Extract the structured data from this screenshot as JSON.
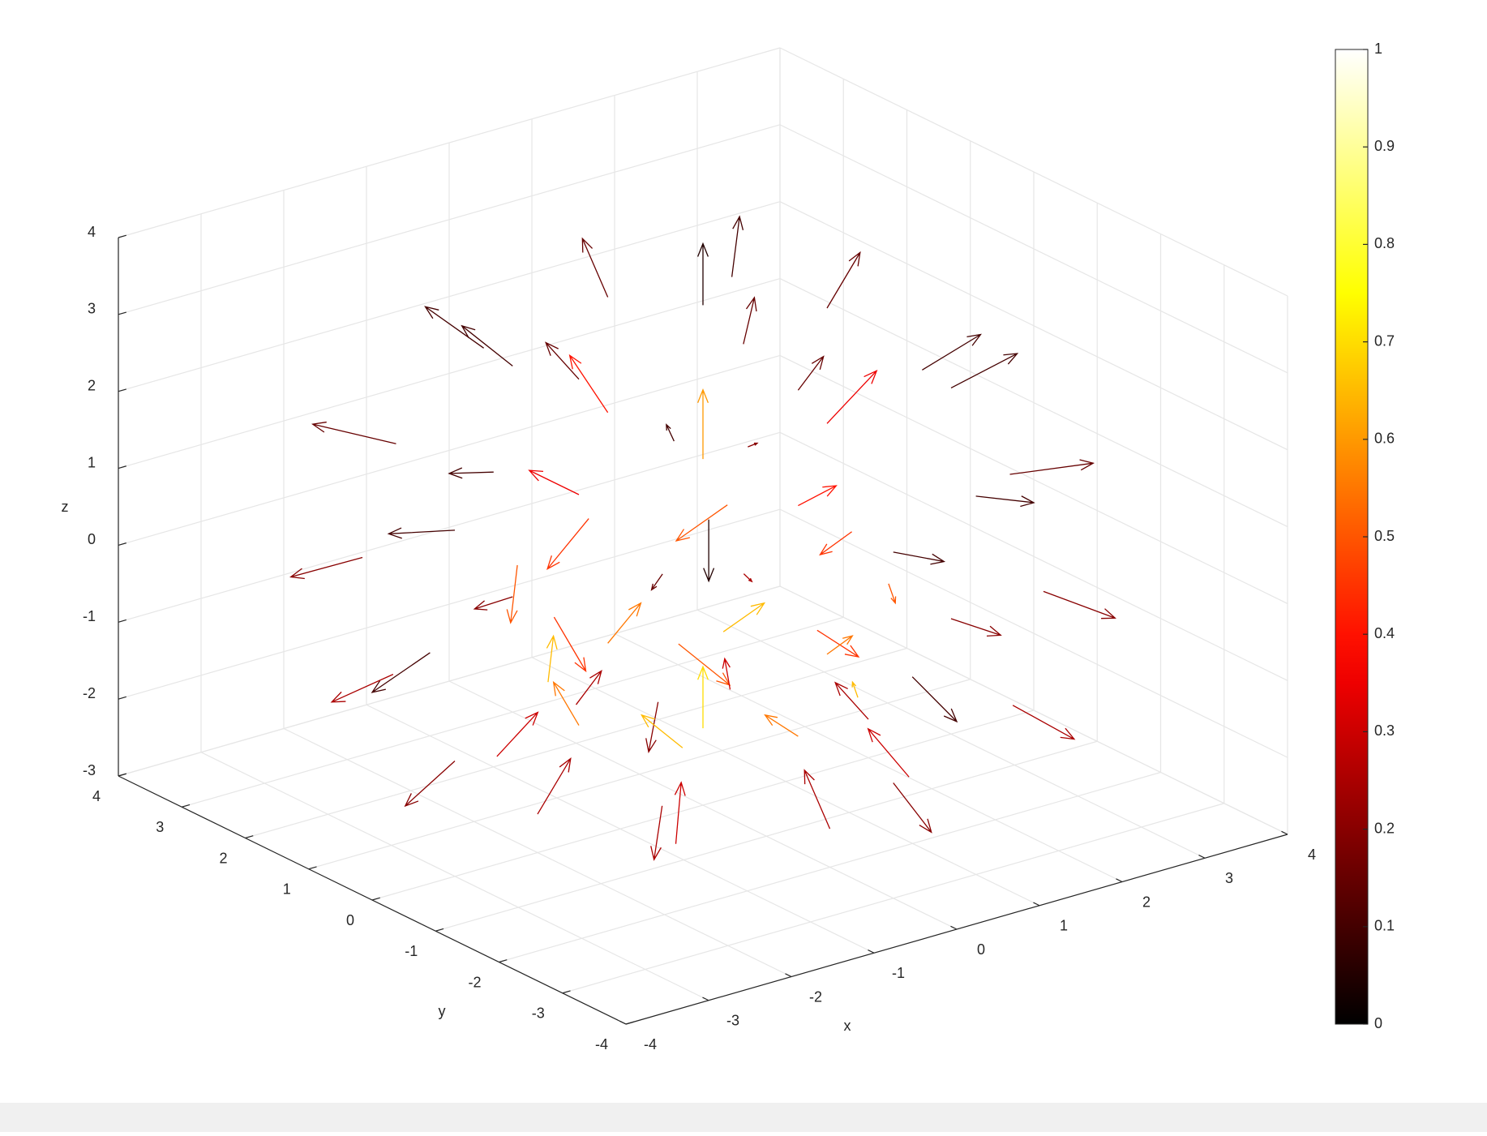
{
  "chart_data": {
    "type": "quiver3",
    "xlabel": "x",
    "ylabel": "y",
    "zlabel": "z",
    "xlim": [
      -4,
      4
    ],
    "ylim": [
      -4,
      4
    ],
    "zlim": [
      -3,
      4
    ],
    "xticks": [
      -4,
      -3,
      -2,
      -1,
      0,
      1,
      2,
      3,
      4
    ],
    "yticks": [
      -4,
      -3,
      -2,
      -1,
      0,
      1,
      2,
      3,
      4
    ],
    "zticks": [
      -3,
      -2,
      -1,
      0,
      1,
      2,
      3,
      4
    ],
    "grid": true,
    "colormap": "hot",
    "clim": [
      0,
      1
    ],
    "cticks": [
      0,
      0.1,
      0.2,
      0.3,
      0.4,
      0.5,
      0.6,
      0.7,
      0.8,
      0.9,
      1
    ],
    "x": [
      0,
      1.5,
      -1.5,
      0,
      0,
      1.5,
      -1.5,
      1.5,
      -1.5,
      3,
      2.1,
      0,
      -2.1,
      -3,
      -2.1,
      0,
      2.1,
      1.5,
      0,
      -1.5,
      0,
      0,
      0.3,
      3.3,
      2.33,
      0,
      -2.33,
      -3.3,
      -2.33,
      0,
      2.33,
      1.8,
      1.27,
      0,
      -1.27,
      -1.8,
      -1.27,
      0,
      1.27,
      3,
      2.12,
      0,
      -2.12,
      -3,
      -2.12,
      0,
      2.12,
      1.5,
      1.06,
      0,
      -1.06,
      -1.5,
      -1.06,
      0,
      1.06,
      2,
      1.41,
      0,
      -1.41,
      -2,
      -1.41,
      0,
      1.41,
      0
    ],
    "y": [
      0,
      0,
      0,
      1.5,
      -1.5,
      1.5,
      -1.5,
      -1.5,
      1.5,
      0,
      2.1,
      3,
      2.1,
      0,
      -2.1,
      -3,
      -2.1,
      0,
      1.5,
      0,
      -1.5,
      0,
      0.3,
      0,
      2.33,
      3.3,
      2.33,
      0,
      -2.33,
      -3.3,
      -2.33,
      0,
      1.27,
      1.8,
      1.27,
      0,
      -1.27,
      -1.8,
      -1.27,
      0,
      2.12,
      3,
      2.12,
      0,
      -2.12,
      -3,
      -2.12,
      0,
      1.06,
      1.5,
      1.06,
      0,
      -1.06,
      -1.5,
      -1.06,
      0,
      1.41,
      2,
      1.41,
      0,
      -1.41,
      -2,
      -1.41,
      0
    ],
    "z": [
      3.5,
      3,
      3,
      3,
      3,
      2.8,
      2.8,
      2.8,
      2.8,
      1.5,
      1.5,
      1.5,
      1.5,
      1.5,
      1.5,
      1.5,
      1.5,
      1.5,
      1.5,
      1.5,
      1.5,
      1.5,
      0.5,
      0,
      0,
      0,
      0,
      0,
      0,
      0,
      0,
      0,
      0,
      0,
      0,
      0,
      0,
      0,
      0,
      -1.5,
      -1.5,
      -1.5,
      -1.5,
      -1.5,
      -1.5,
      -1.5,
      -1.5,
      -1.5,
      -1.5,
      -1.5,
      -1.5,
      -1.5,
      -1.5,
      -1.5,
      -1.5,
      -2.5,
      -2.5,
      -2.5,
      -2.5,
      -2.5,
      -2.5,
      -2.5,
      -2.5,
      -2
    ],
    "u": [
      0,
      0.4,
      -0.4,
      0,
      0,
      0.4,
      -0.4,
      0.4,
      -0.4,
      0.8,
      0.57,
      0,
      -0.57,
      -0.8,
      -0.57,
      0,
      0.57,
      0.6,
      0,
      -0.6,
      0,
      0,
      0,
      0.7,
      0.49,
      0,
      -0.49,
      -0.7,
      -0.49,
      0,
      0.49,
      0,
      -0.35,
      -0.5,
      -0.35,
      0,
      0.35,
      0.5,
      0.35,
      0.6,
      0.42,
      0,
      -0.42,
      -0.6,
      -0.42,
      0,
      0.42,
      0,
      0.28,
      0.4,
      0.28,
      0,
      -0.28,
      -0.4,
      -0.28,
      -0.4,
      -0.28,
      0,
      0.28,
      0.4,
      0.28,
      0,
      -0.28,
      0
    ],
    "v": [
      0,
      0,
      0,
      0.4,
      -0.4,
      0.4,
      -0.4,
      -0.4,
      0.4,
      0,
      0.57,
      0.8,
      0.57,
      0,
      -0.57,
      -0.8,
      -0.57,
      0,
      0.6,
      0,
      -0.6,
      0,
      0,
      0,
      0.49,
      0.7,
      0.49,
      0,
      -0.49,
      -0.7,
      -0.49,
      0.5,
      0.35,
      0,
      -0.35,
      -0.5,
      -0.35,
      0,
      0.35,
      0,
      0.42,
      0.6,
      0.42,
      0,
      -0.42,
      -0.6,
      -0.42,
      -0.4,
      -0.28,
      0,
      0.28,
      0.4,
      0.28,
      0,
      -0.28,
      0,
      -0.28,
      -0.4,
      -0.28,
      0,
      0.28,
      0.4,
      0.28,
      0
    ],
    "w": [
      0.8,
      0.6,
      0.6,
      0.6,
      0.6,
      0.5,
      0.5,
      0.5,
      0.5,
      0.2,
      0.2,
      0.2,
      0.2,
      0.2,
      0.2,
      0.2,
      0.2,
      0.5,
      0.5,
      0.5,
      0.5,
      0.9,
      -0.8,
      -0.3,
      -0.3,
      -0.3,
      -0.3,
      -0.3,
      -0.3,
      -0.3,
      -0.3,
      -0.5,
      -0.5,
      -0.5,
      -0.5,
      -0.5,
      -0.5,
      -0.5,
      -0.5,
      -0.4,
      -0.4,
      -0.4,
      -0.4,
      -0.4,
      -0.4,
      -0.4,
      -0.4,
      0.4,
      0.4,
      0.4,
      0.4,
      0.4,
      0.4,
      0.4,
      0.4,
      0.6,
      0.6,
      0.6,
      0.6,
      0.6,
      0.6,
      0.6,
      0.6,
      0.8
    ],
    "c": [
      0.05,
      0.15,
      0.15,
      0.15,
      0.15,
      0.1,
      0.1,
      0.1,
      0.1,
      0.1,
      0.15,
      0.1,
      0.15,
      0.1,
      0.15,
      0.1,
      0.15,
      0.35,
      0.4,
      0.35,
      0.4,
      0.6,
      0.05,
      0.1,
      0.2,
      0.1,
      0.2,
      0.1,
      0.2,
      0.1,
      0.2,
      0.45,
      0.5,
      0.45,
      0.5,
      0.45,
      0.5,
      0.45,
      0.5,
      0.2,
      0.25,
      0.2,
      0.25,
      0.2,
      0.25,
      0.2,
      0.25,
      0.55,
      0.65,
      0.55,
      0.65,
      0.55,
      0.65,
      0.55,
      0.65,
      0.25,
      0.3,
      0.25,
      0.3,
      0.25,
      0.3,
      0.25,
      0.3,
      0.7
    ]
  }
}
